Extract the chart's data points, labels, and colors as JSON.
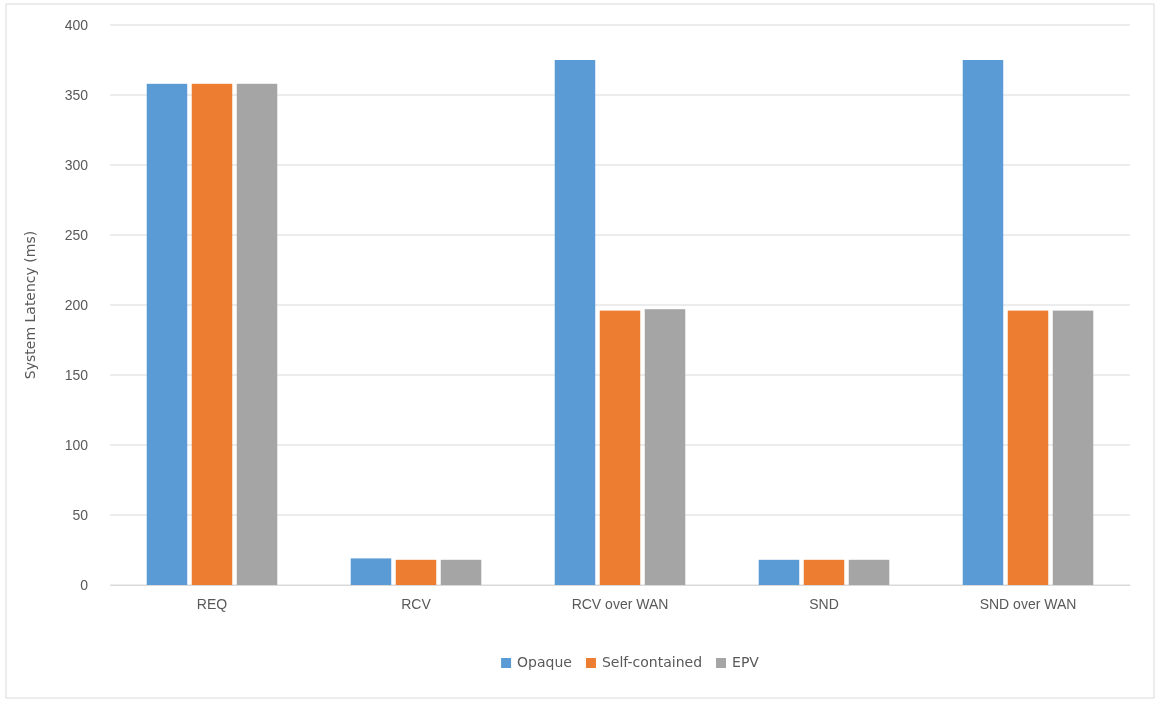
{
  "chart_data": {
    "type": "bar",
    "ylabel": "System Latency (ms)",
    "categories": [
      "REQ",
      "RCV",
      "RCV over WAN",
      "SND",
      "SND over WAN"
    ],
    "series": [
      {
        "name": "Opaque",
        "color": "#5b9bd5",
        "values": [
          358,
          19,
          375,
          18,
          375
        ]
      },
      {
        "name": "Self-contained",
        "color": "#ed7d31",
        "values": [
          358,
          18,
          196,
          18,
          196
        ]
      },
      {
        "name": "EPV",
        "color": "#a5a5a5",
        "values": [
          358,
          18,
          197,
          18,
          196
        ]
      }
    ],
    "ylim": [
      0,
      400
    ],
    "yticks": [
      0,
      50,
      100,
      150,
      200,
      250,
      300,
      350,
      400
    ],
    "grid": "y",
    "legend": "bottom"
  }
}
